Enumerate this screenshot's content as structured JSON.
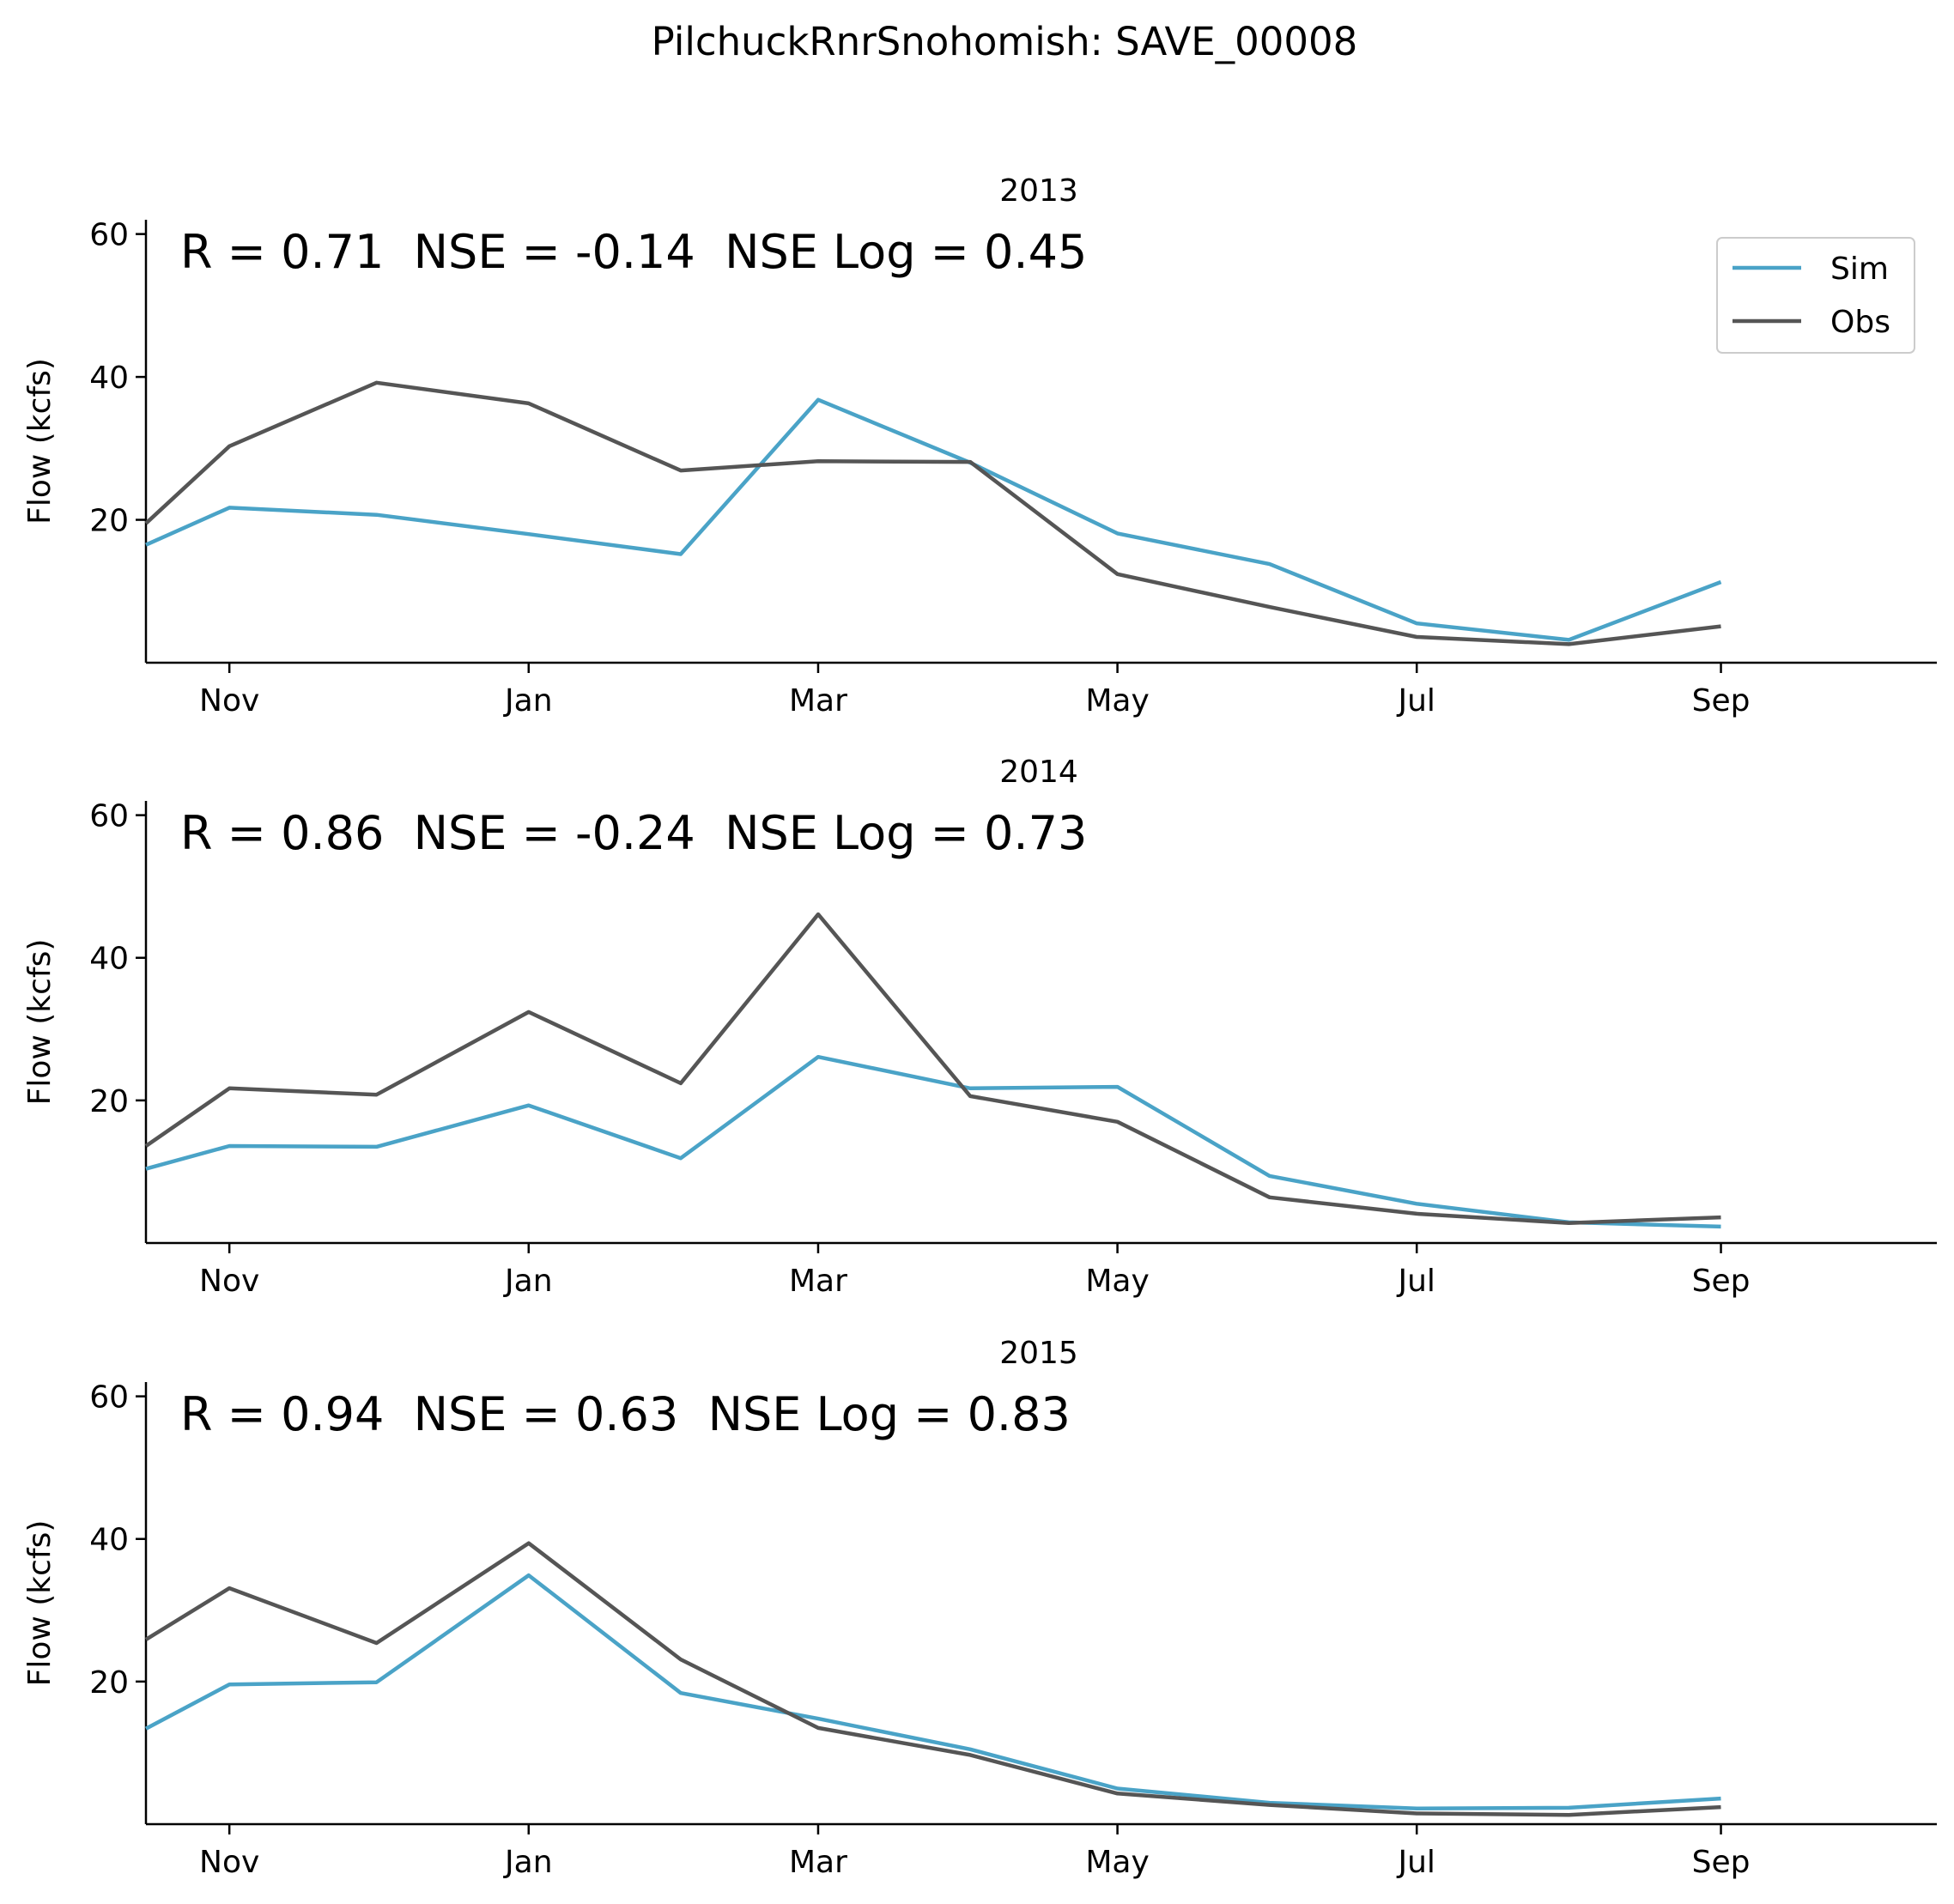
{
  "figure_title": "PilchuckRnrSnohomish: SAVE_00008",
  "colors": {
    "sim": "#4aa3c7",
    "obs": "#555555",
    "axis": "#000000"
  },
  "legend": {
    "items": [
      {
        "key": "sim",
        "label": "Sim"
      },
      {
        "key": "obs",
        "label": "Obs"
      }
    ],
    "placement": "upper-right of first panel"
  },
  "chart_data": [
    {
      "type": "line",
      "title": "2013",
      "ylabel": "Flow (kcfs)",
      "stats": "R = 0.71  NSE = -0.14  NSE Log = 0.45",
      "show_legend": true,
      "x": [
        "2012-10-15",
        "2012-11-01",
        "2012-12-01",
        "2013-01-01",
        "2013-02-01",
        "2013-03-01",
        "2013-04-01",
        "2013-05-01",
        "2013-06-01",
        "2013-07-01",
        "2013-08-01",
        "2013-09-01"
      ],
      "series": [
        {
          "name": "Sim",
          "key": "sim",
          "values": [
            16.5,
            21.7,
            20.7,
            18.0,
            15.2,
            36.8,
            28.0,
            18.1,
            13.8,
            5.5,
            3.2,
            11.3
          ]
        },
        {
          "name": "Obs",
          "key": "obs",
          "values": [
            19.5,
            30.3,
            39.2,
            36.3,
            26.9,
            28.2,
            28.1,
            12.4,
            7.8,
            3.6,
            2.6,
            5.1
          ]
        }
      ],
      "xlim": [
        "2012-10-15",
        "2013-10-15"
      ],
      "ylim": [
        0,
        62
      ],
      "yticks": [
        20,
        40,
        60
      ],
      "xticks": [
        "Nov",
        "Jan",
        "Mar",
        "May",
        "Jul",
        "Sep"
      ]
    },
    {
      "type": "line",
      "title": "2014",
      "ylabel": "Flow (kcfs)",
      "stats": "R = 0.86  NSE = -0.24  NSE Log = 0.73",
      "show_legend": false,
      "x": [
        "2013-10-15",
        "2013-11-01",
        "2013-12-01",
        "2014-01-01",
        "2014-02-01",
        "2014-03-01",
        "2014-04-01",
        "2014-05-01",
        "2014-06-01",
        "2014-07-01",
        "2014-08-01",
        "2014-09-01"
      ],
      "series": [
        {
          "name": "Sim",
          "key": "sim",
          "values": [
            10.4,
            13.6,
            13.5,
            19.3,
            11.9,
            26.1,
            21.7,
            21.9,
            9.4,
            5.5,
            2.9,
            2.3
          ]
        },
        {
          "name": "Obs",
          "key": "obs",
          "values": [
            13.6,
            21.7,
            20.8,
            32.4,
            22.4,
            46.1,
            20.6,
            17.0,
            6.4,
            4.1,
            2.8,
            3.6
          ]
        }
      ],
      "xlim": [
        "2013-10-15",
        "2014-10-15"
      ],
      "ylim": [
        0,
        62
      ],
      "yticks": [
        20,
        40,
        60
      ],
      "xticks": [
        "Nov",
        "Jan",
        "Mar",
        "May",
        "Jul",
        "Sep"
      ]
    },
    {
      "type": "line",
      "title": "2015",
      "ylabel": "Flow (kcfs)",
      "stats": "R = 0.94  NSE = 0.63  NSE Log = 0.83",
      "show_legend": false,
      "x": [
        "2014-10-15",
        "2014-11-01",
        "2014-12-01",
        "2015-01-01",
        "2015-02-01",
        "2015-03-01",
        "2015-04-01",
        "2015-05-01",
        "2015-06-01",
        "2015-07-01",
        "2015-08-01",
        "2015-09-01"
      ],
      "series": [
        {
          "name": "Sim",
          "key": "sim",
          "values": [
            13.4,
            19.6,
            19.9,
            34.9,
            18.4,
            14.8,
            10.5,
            5.0,
            3.0,
            2.2,
            2.3,
            3.6
          ]
        },
        {
          "name": "Obs",
          "key": "obs",
          "values": [
            25.9,
            33.1,
            25.4,
            39.4,
            23.1,
            13.5,
            9.7,
            4.3,
            2.7,
            1.5,
            1.3,
            2.4
          ]
        }
      ],
      "xlim": [
        "2014-10-15",
        "2015-10-15"
      ],
      "ylim": [
        0,
        62
      ],
      "yticks": [
        20,
        40,
        60
      ],
      "xticks": [
        "Nov",
        "Jan",
        "Mar",
        "May",
        "Jul",
        "Sep"
      ]
    }
  ]
}
